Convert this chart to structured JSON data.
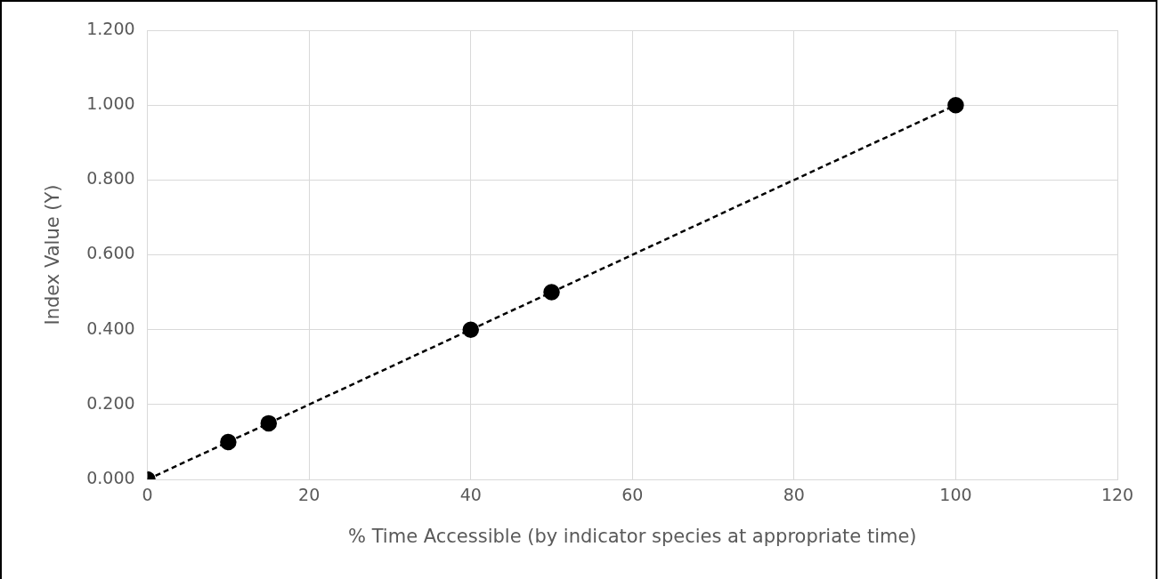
{
  "chart_data": {
    "type": "line",
    "xlabel": "% Time Accessible (by indicator species at appropriate time)",
    "ylabel": "Index Value (Y)",
    "x": [
      0,
      10,
      15,
      40,
      50,
      100
    ],
    "series": [
      {
        "color": "#000000",
        "values": [
          0,
          0.1,
          0.15,
          0.4,
          0.5,
          1.0
        ]
      }
    ],
    "xlim": [
      0,
      120
    ],
    "xticks": [
      0,
      20,
      40,
      60,
      80,
      100,
      120
    ],
    "ylim": [
      0,
      1.2
    ],
    "yticks": [
      {
        "value": 0,
        "label": "0.000"
      },
      {
        "value": 0.2,
        "label": "0.200"
      },
      {
        "value": 0.4,
        "label": "0.400"
      },
      {
        "value": 0.6,
        "label": "0.600"
      },
      {
        "value": 0.8,
        "label": "0.800"
      },
      {
        "value": 1.0,
        "label": "1.000"
      },
      {
        "value": 1.2,
        "label": "1.200"
      }
    ],
    "grid": true,
    "legend": false,
    "marker": "circle",
    "line_style": "dashed"
  }
}
